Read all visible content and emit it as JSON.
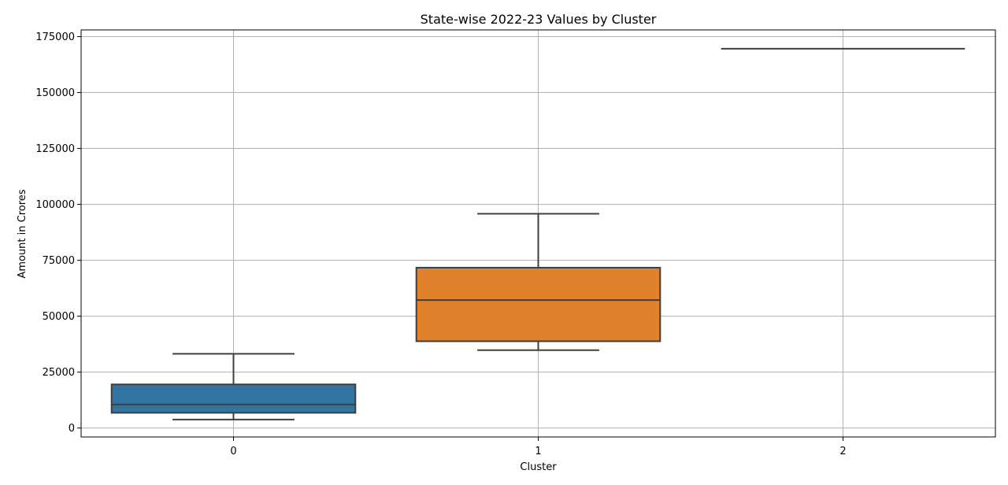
{
  "chart_data": {
    "type": "box",
    "title": "State-wise 2022-23 Values by Cluster",
    "xlabel": "Cluster",
    "ylabel": "Amount in Crores",
    "categories": [
      "0",
      "1",
      "2"
    ],
    "ylim": [
      -4000,
      178000
    ],
    "yticks": [
      0,
      25000,
      50000,
      75000,
      100000,
      125000,
      150000,
      175000
    ],
    "ytick_labels": [
      "0",
      "25000",
      "50000",
      "75000",
      "100000",
      "125000",
      "150000",
      "175000"
    ],
    "grid": true,
    "boxes": [
      {
        "category": "0",
        "whisker_low": 3800,
        "q1": 6800,
        "median": 10500,
        "q3": 19500,
        "whisker_high": 33200,
        "color": "#3274a1"
      },
      {
        "category": "1",
        "whisker_low": 34800,
        "q1": 38800,
        "median": 57200,
        "q3": 71700,
        "whisker_high": 95800,
        "color": "#e1812c"
      },
      {
        "category": "2",
        "whisker_low": 169600,
        "q1": 169600,
        "median": 169600,
        "q3": 169600,
        "whisker_high": 169600,
        "color": "#3a923a"
      }
    ]
  }
}
